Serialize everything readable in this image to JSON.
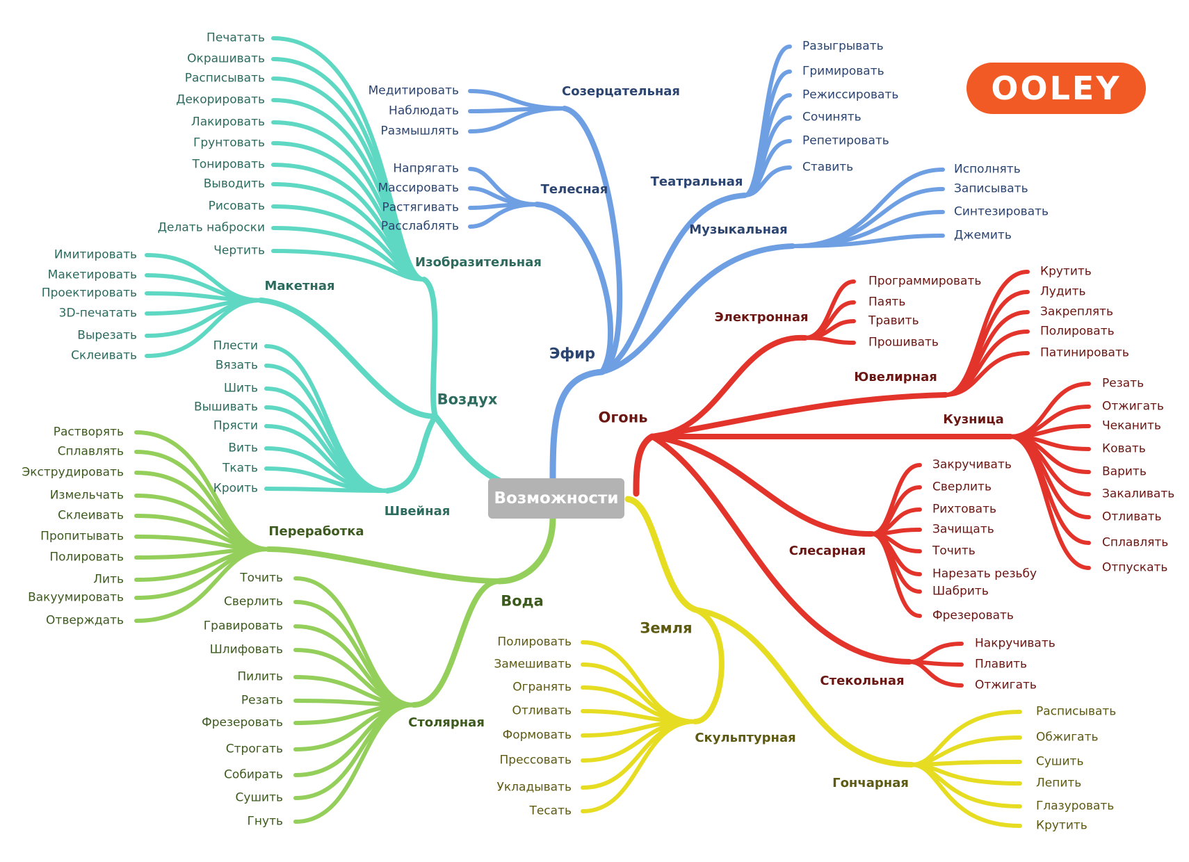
{
  "title": "Возможности",
  "logo_text": "OOLEY",
  "colors": {
    "air": "#5fd8c3",
    "ether": "#6f9fe3",
    "fire": "#e3342c",
    "water": "#94cf5c",
    "earth": "#e6dc22",
    "air_text": "#2c6b5e",
    "ether_text": "#2b4470",
    "fire_text": "#6a1612",
    "water_text": "#3d5a1e",
    "earth_text": "#5e5a12",
    "root_box": "#b3b3b3",
    "logo_bg": "#f15a24"
  },
  "elements": {
    "air": {
      "label": "Воздух",
      "categories": [
        {
          "label": "Изобразительная",
          "leaves": [
            "Печатать",
            "Окрашивать",
            "Расписывать",
            "Декорировать",
            "Лакировать",
            "Грунтовать",
            "Тонировать",
            "Выводить",
            "Рисовать",
            "Делать наброски",
            "Чертить"
          ]
        },
        {
          "label": "Макетная",
          "leaves": [
            "Имитировать",
            "Макетировать",
            "Проектировать",
            "3D-печатать",
            "Вырезать",
            "Склеивать"
          ]
        },
        {
          "label": "Швейная",
          "leaves": [
            "Плести",
            "Вязать",
            "Шить",
            "Вышивать",
            "Прясти",
            "Вить",
            "Ткать",
            "Кроить"
          ]
        }
      ]
    },
    "ether": {
      "label": "Эфир",
      "categories": [
        {
          "label": "Созерцательная",
          "leaves": [
            "Медитировать",
            "Наблюдать",
            "Размышлять"
          ]
        },
        {
          "label": "Телесная",
          "leaves": [
            "Напрягать",
            "Массировать",
            "Растягивать",
            "Расслаблять"
          ]
        },
        {
          "label": "Театральная",
          "leaves": [
            "Разыгрывать",
            "Гримировать",
            "Режиссировать",
            "Сочинять",
            "Репетировать",
            "Ставить"
          ]
        },
        {
          "label": "Музыкальная",
          "leaves": [
            "Исполнять",
            "Записывать",
            "Синтезировать",
            "Джемить"
          ]
        }
      ]
    },
    "fire": {
      "label": "Огонь",
      "categories": [
        {
          "label": "Электронная",
          "leaves": [
            "Программировать",
            "Паять",
            "Травить",
            "Прошивать"
          ]
        },
        {
          "label": "Ювелирная",
          "leaves": [
            "Крутить",
            "Лудить",
            "Закреплять",
            "Полировать",
            "Патинировать"
          ]
        },
        {
          "label": "Кузница",
          "leaves": [
            "Резать",
            "Отжигать",
            "Чеканить",
            "Ковать",
            "Варить",
            "Закаливать",
            "Отливать",
            "Сплавлять",
            "Отпускать"
          ]
        },
        {
          "label": "Слесарная",
          "leaves": [
            "Закручивать",
            "Сверлить",
            "Рихтовать",
            "Зачищать",
            "Точить",
            "Нарезать резьбу",
            "Шабрить",
            "Фрезеровать"
          ]
        },
        {
          "label": "Стекольная",
          "leaves": [
            "Накручивать",
            "Плавить",
            "Отжигать"
          ]
        }
      ]
    },
    "water": {
      "label": "Вода",
      "categories": [
        {
          "label": "Переработка",
          "leaves": [
            "Растворять",
            "Сплавлять",
            "Экструдировать",
            "Измельчать",
            "Склеивать",
            "Пропитывать",
            "Полировать",
            "Лить",
            "Вакуумировать",
            "Отверждать"
          ]
        },
        {
          "label": "Столярная",
          "leaves": [
            "Точить",
            "Сверлить",
            "Гравировать",
            "Шлифовать",
            "Пилить",
            "Резать",
            "Фрезеровать",
            "Строгать",
            "Собирать",
            "Сушить",
            "Гнуть"
          ]
        }
      ]
    },
    "earth": {
      "label": "Земля",
      "categories": [
        {
          "label": "Скульптурная",
          "leaves": [
            "Полировать",
            "Замешивать",
            "Огранять",
            "Отливать",
            "Формовать",
            "Прессовать",
            "Укладывать",
            "Тесать"
          ]
        },
        {
          "label": "Гончарная",
          "leaves": [
            "Расписывать",
            "Обжигать",
            "Сушить",
            "Лепить",
            "Глазуровать",
            "Крутить"
          ]
        }
      ]
    }
  }
}
